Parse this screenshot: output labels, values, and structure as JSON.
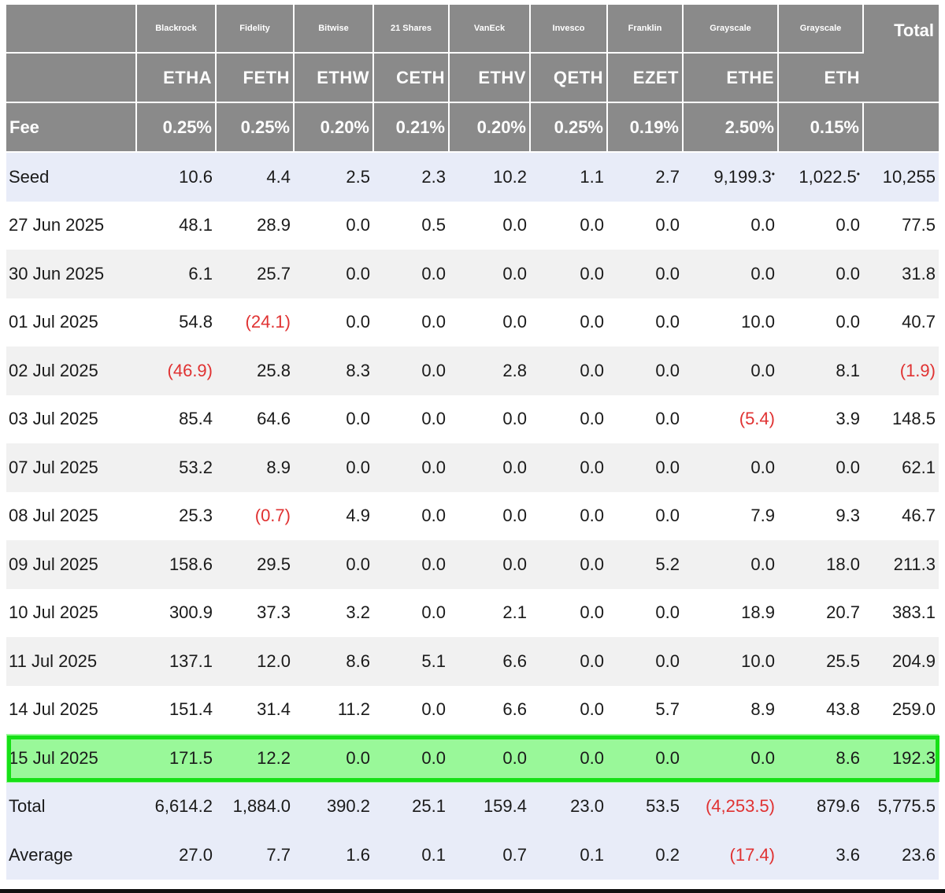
{
  "header": {
    "issuers": [
      "Blackrock",
      "Fidelity",
      "Bitwise",
      "21 Shares",
      "VanEck",
      "Invesco",
      "Franklin",
      "Grayscale",
      "Grayscale"
    ],
    "total_label": "Total",
    "tickers": [
      "ETHA",
      "FETH",
      "ETHW",
      "CETH",
      "ETHV",
      "QETH",
      "EZET",
      "ETHE",
      "ETH"
    ],
    "fee_label": "Fee",
    "fees": [
      "0.25%",
      "0.25%",
      "0.20%",
      "0.21%",
      "0.20%",
      "0.25%",
      "0.19%",
      "2.50%",
      "0.15%"
    ]
  },
  "seed": {
    "label": "Seed",
    "values": [
      "10.6",
      "4.4",
      "2.5",
      "2.3",
      "10.2",
      "1.1",
      "2.7",
      "9,199.3",
      "1,022.5"
    ],
    "ethe_mark": "•",
    "eth_mark": "•",
    "total": "10,255"
  },
  "rows": [
    {
      "date": "27 Jun 2025",
      "values": [
        "48.1",
        "28.9",
        "0.0",
        "0.5",
        "0.0",
        "0.0",
        "0.0",
        "0.0",
        "0.0"
      ],
      "total": "77.5"
    },
    {
      "date": "30 Jun 2025",
      "values": [
        "6.1",
        "25.7",
        "0.0",
        "0.0",
        "0.0",
        "0.0",
        "0.0",
        "0.0",
        "0.0"
      ],
      "total": "31.8"
    },
    {
      "date": "01 Jul 2025",
      "values": [
        "54.8",
        "(24.1)",
        "0.0",
        "0.0",
        "0.0",
        "0.0",
        "0.0",
        "10.0",
        "0.0"
      ],
      "total": "40.7"
    },
    {
      "date": "02 Jul 2025",
      "values": [
        "(46.9)",
        "25.8",
        "8.3",
        "0.0",
        "2.8",
        "0.0",
        "0.0",
        "0.0",
        "8.1"
      ],
      "total": "(1.9)"
    },
    {
      "date": "03 Jul 2025",
      "values": [
        "85.4",
        "64.6",
        "0.0",
        "0.0",
        "0.0",
        "0.0",
        "0.0",
        "(5.4)",
        "3.9"
      ],
      "total": "148.5"
    },
    {
      "date": "07 Jul 2025",
      "values": [
        "53.2",
        "8.9",
        "0.0",
        "0.0",
        "0.0",
        "0.0",
        "0.0",
        "0.0",
        "0.0"
      ],
      "total": "62.1"
    },
    {
      "date": "08 Jul 2025",
      "values": [
        "25.3",
        "(0.7)",
        "4.9",
        "0.0",
        "0.0",
        "0.0",
        "0.0",
        "7.9",
        "9.3"
      ],
      "total": "46.7"
    },
    {
      "date": "09 Jul 2025",
      "values": [
        "158.6",
        "29.5",
        "0.0",
        "0.0",
        "0.0",
        "0.0",
        "5.2",
        "0.0",
        "18.0"
      ],
      "total": "211.3"
    },
    {
      "date": "10 Jul 2025",
      "values": [
        "300.9",
        "37.3",
        "3.2",
        "0.0",
        "2.1",
        "0.0",
        "0.0",
        "18.9",
        "20.7"
      ],
      "total": "383.1"
    },
    {
      "date": "11 Jul 2025",
      "values": [
        "137.1",
        "12.0",
        "8.6",
        "5.1",
        "6.6",
        "0.0",
        "0.0",
        "10.0",
        "25.5"
      ],
      "total": "204.9"
    },
    {
      "date": "14 Jul 2025",
      "values": [
        "151.4",
        "31.4",
        "11.2",
        "0.0",
        "6.6",
        "0.0",
        "5.7",
        "8.9",
        "43.8"
      ],
      "total": "259.0"
    },
    {
      "date": "15 Jul 2025",
      "values": [
        "171.5",
        "12.2",
        "0.0",
        "0.0",
        "0.0",
        "0.0",
        "0.0",
        "0.0",
        "8.6"
      ],
      "total": "192.3",
      "highlight": true
    }
  ],
  "summary": [
    {
      "label": "Total",
      "values": [
        "6,614.2",
        "1,884.0",
        "390.2",
        "25.1",
        "159.4",
        "23.0",
        "53.5",
        "(4,253.5)",
        "879.6"
      ],
      "total": "5,775.5"
    },
    {
      "label": "Average",
      "values": [
        "27.0",
        "7.7",
        "1.6",
        "0.1",
        "0.7",
        "0.1",
        "0.2",
        "(17.4)",
        "3.6"
      ],
      "total": "23.6"
    }
  ],
  "colors": {
    "header_bg": "#8a8a8a",
    "negative": "#e03232",
    "highlight_fill": "#99f899",
    "highlight_border": "#16e016",
    "seed_bg": "#e8ecf8"
  }
}
